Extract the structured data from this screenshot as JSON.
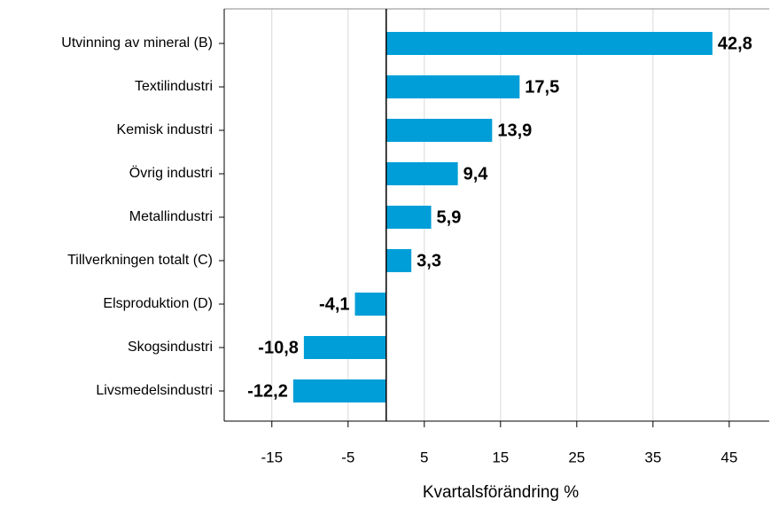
{
  "chart_data": {
    "type": "barh",
    "categories": [
      "Utvinning av mineral (B)",
      "Textilindustri",
      "Kemisk industri",
      "Övrig industri",
      "Metallindustri",
      "Tillverkningen totalt (C)",
      "Elsproduktion (D)",
      "Skogsindustri",
      "Livsmedelsindustri"
    ],
    "values": [
      42.8,
      17.5,
      13.9,
      9.4,
      5.9,
      3.3,
      -4.1,
      -10.8,
      -12.2
    ],
    "value_labels": [
      "42,8",
      "17,5",
      "13,9",
      "9,4",
      "5,9",
      "3,3",
      "-4,1",
      "-10,8",
      "-12,2"
    ],
    "color": "#009ed8",
    "xlabel": "Kvartalsförändring %",
    "xlim": [
      -21.25,
      50.25
    ],
    "xticks": [
      -15,
      -5,
      5,
      15,
      25,
      35,
      45
    ],
    "grid": true
  }
}
